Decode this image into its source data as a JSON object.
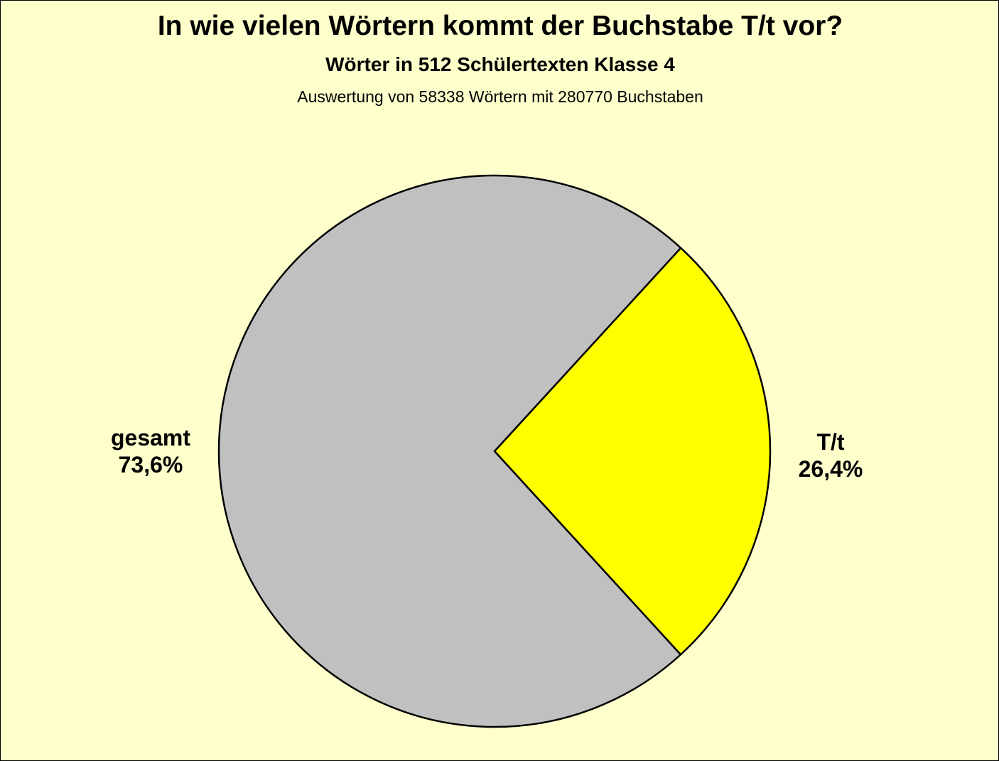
{
  "chart_data": {
    "type": "pie",
    "title": "In wie vielen Wörtern kommt der Buchstabe T/t vor?",
    "subtitle": "Wörter in 512 Schülertexten Klasse 4",
    "note": "Auswertung von 58338 Wörtern mit 280770 Buchstaben",
    "slices": [
      {
        "label": "T/t",
        "value": 26.4,
        "value_label": "26,4%",
        "color": "#ffff00"
      },
      {
        "label": "gesamt",
        "value": 73.6,
        "value_label": "73,6%",
        "color": "#c0c0c0"
      }
    ],
    "legend": "none"
  },
  "colors": {
    "background": "#ffffcc",
    "outline": "#000000"
  }
}
